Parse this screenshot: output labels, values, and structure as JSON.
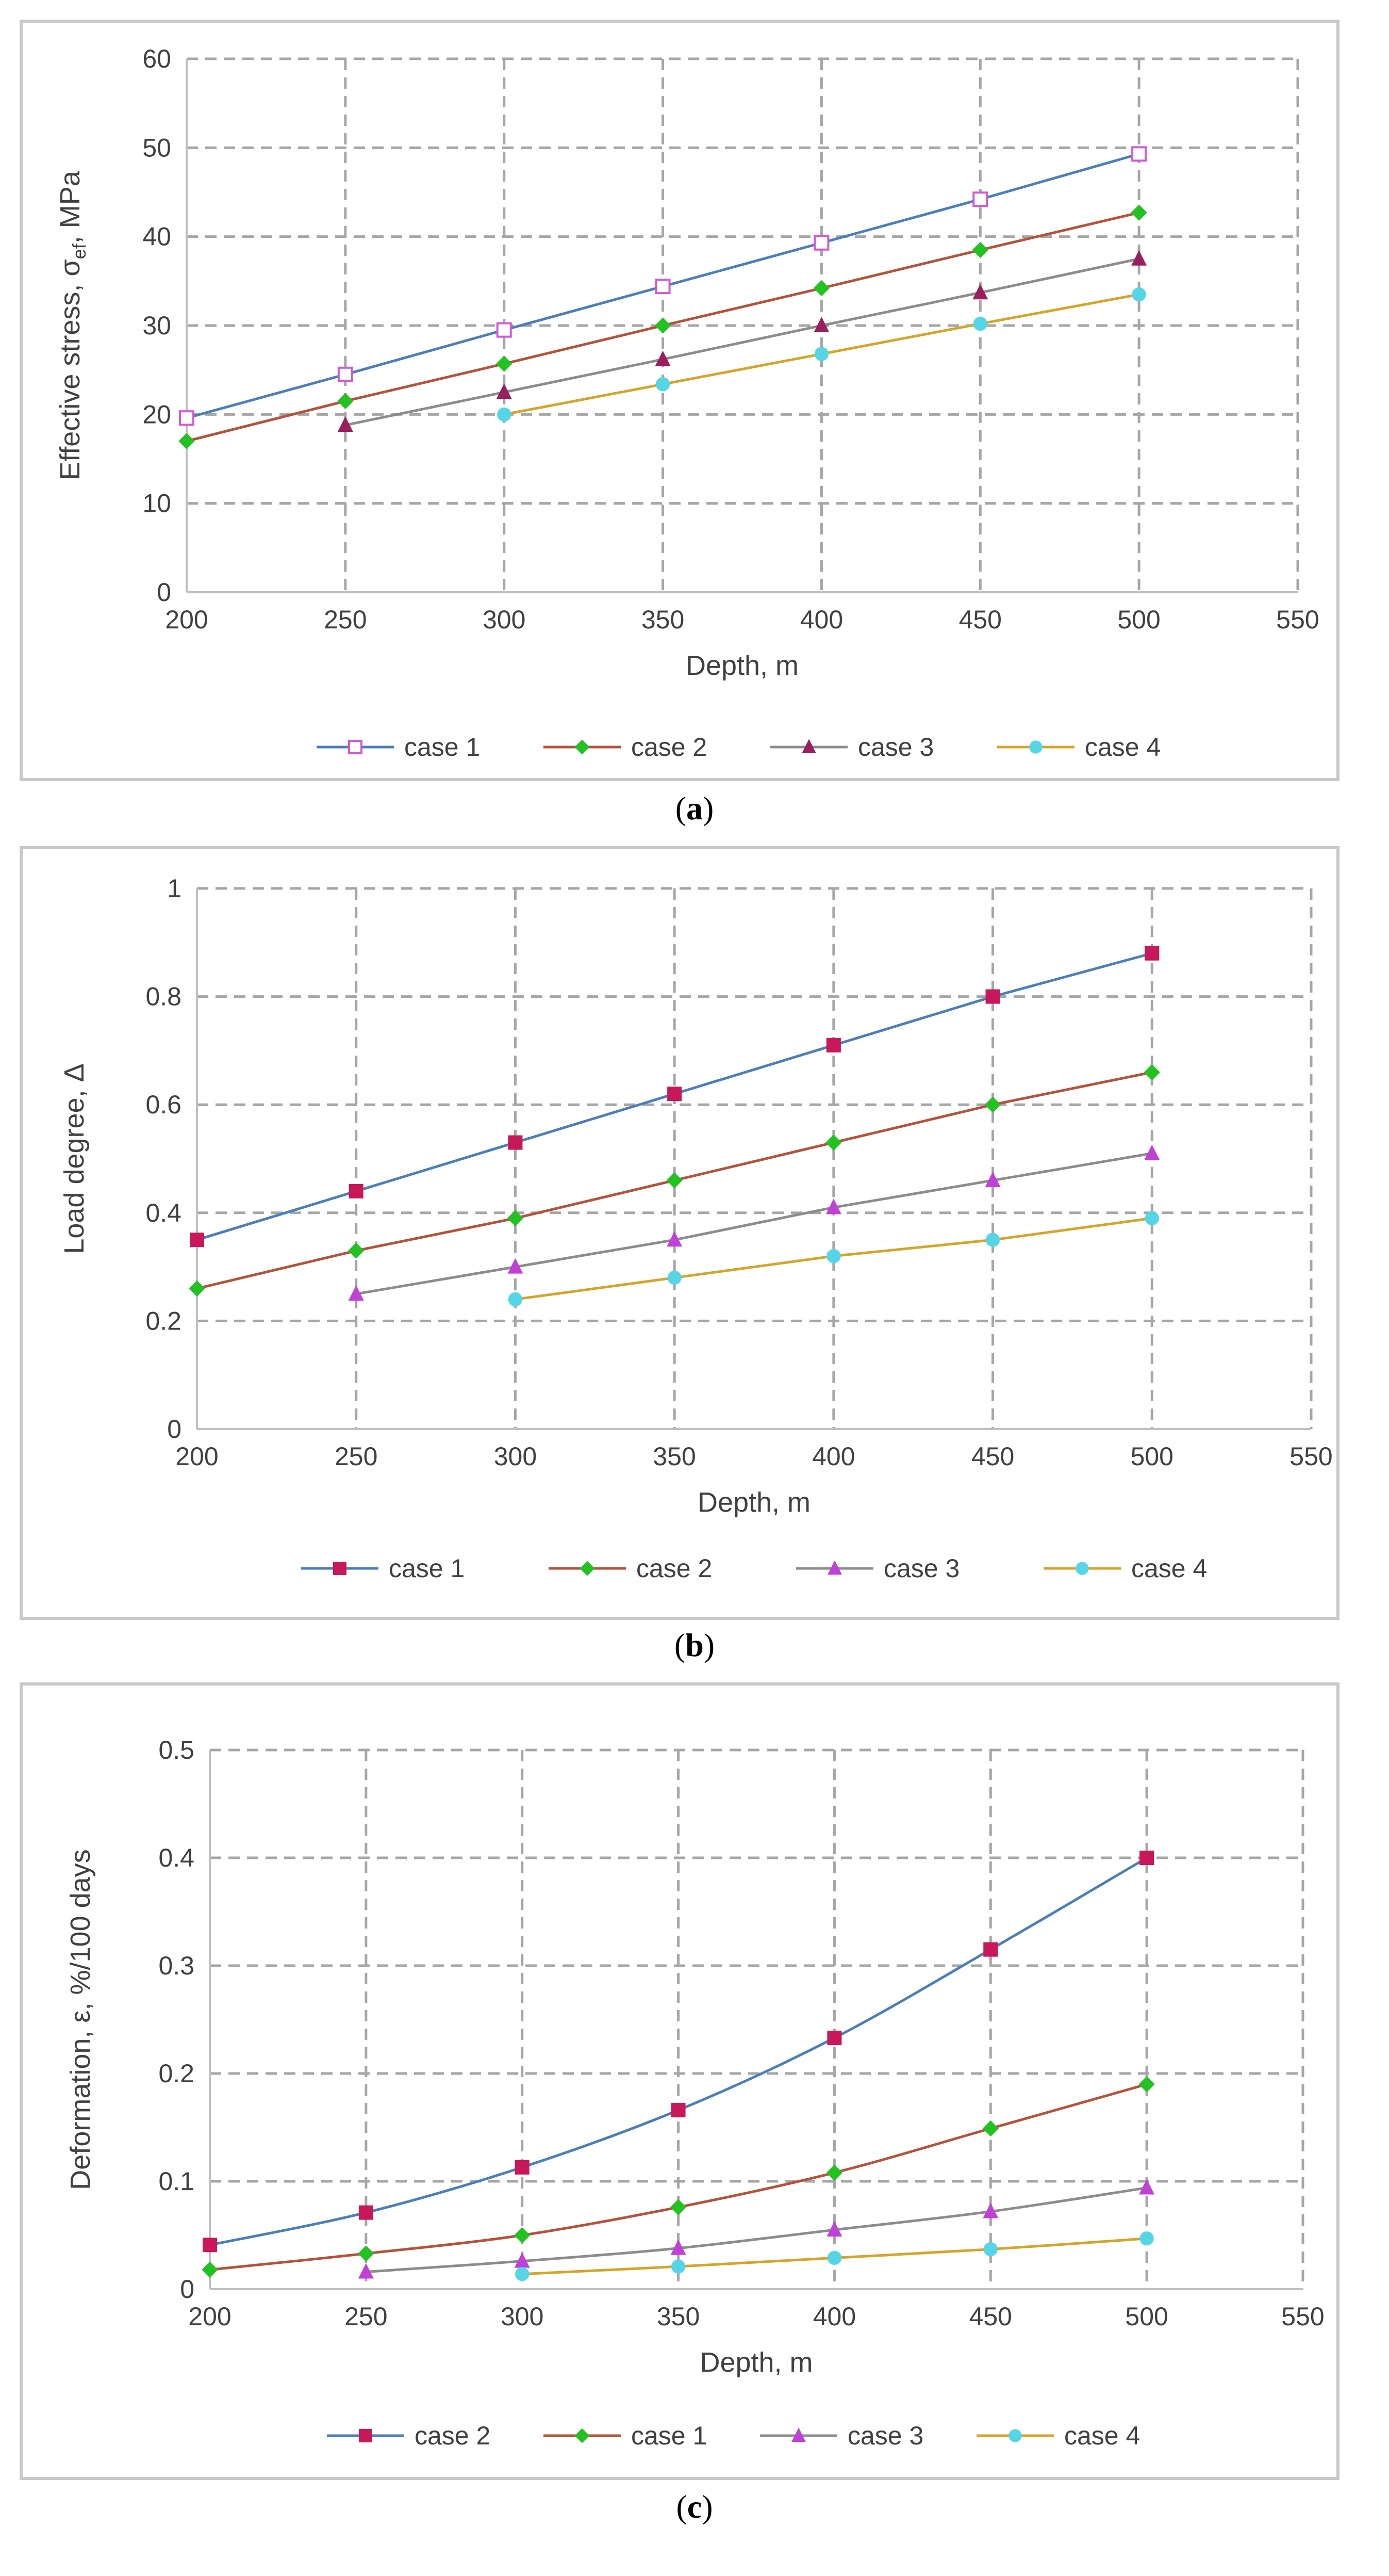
{
  "panels": [
    {
      "label": "a",
      "chart_data": {
        "type": "line",
        "title": "",
        "xlabel": "Depth, m",
        "ylabel": "Effective stress, σ",
        "ylabel_sub": "ef",
        "ylabel_suffix": ", MPa",
        "xlim": [
          200,
          550
        ],
        "ylim": [
          0,
          60
        ],
        "xticks": [
          200,
          250,
          300,
          350,
          400,
          450,
          500,
          550
        ],
        "yticks": [
          0,
          10,
          20,
          30,
          40,
          50,
          60
        ],
        "grid": true,
        "legend": "bottom",
        "series": [
          {
            "name": "case 1",
            "color": "#4a7ebb",
            "marker": "square-open",
            "markerColor": "#d05ad6",
            "x": [
              200,
              250,
              300,
              350,
              400,
              450,
              500
            ],
            "y": [
              19.6,
              24.5,
              29.5,
              34.4,
              39.3,
              44.2,
              49.3
            ]
          },
          {
            "name": "case 2",
            "color": "#b5523b",
            "marker": "diamond",
            "markerColor": "#22c222",
            "x": [
              200,
              250,
              300,
              350,
              400,
              450,
              500
            ],
            "y": [
              17.0,
              21.5,
              25.7,
              30.0,
              34.2,
              38.5,
              42.7
            ]
          },
          {
            "name": "case 3",
            "color": "#8c8c8c",
            "marker": "triangle",
            "markerColor": "#9a1f5e",
            "x": [
              250,
              300,
              350,
              400,
              450,
              500
            ],
            "y": [
              18.8,
              22.5,
              26.2,
              30.0,
              33.7,
              37.5
            ]
          },
          {
            "name": "case 4",
            "color": "#d4a52a",
            "marker": "circle",
            "markerColor": "#55d6e6",
            "x": [
              300,
              350,
              400,
              450,
              500
            ],
            "y": [
              20.0,
              23.4,
              26.8,
              30.2,
              33.5
            ]
          }
        ]
      }
    },
    {
      "label": "b",
      "chart_data": {
        "type": "line",
        "title": "",
        "xlabel": "Depth, m",
        "ylabel": "Load degree, Δ",
        "ylabel_sub": "",
        "ylabel_suffix": "",
        "xlim": [
          200,
          550
        ],
        "ylim": [
          0,
          1
        ],
        "xticks": [
          200,
          250,
          300,
          350,
          400,
          450,
          500,
          550
        ],
        "yticks": [
          0,
          0.2,
          0.4,
          0.6,
          0.8,
          1
        ],
        "grid": true,
        "legend": "bottom",
        "series": [
          {
            "name": "case 1",
            "color": "#4a7ebb",
            "marker": "square",
            "markerColor": "#c8185a",
            "x": [
              200,
              250,
              300,
              350,
              400,
              450,
              500
            ],
            "y": [
              0.35,
              0.44,
              0.53,
              0.62,
              0.71,
              0.8,
              0.88
            ]
          },
          {
            "name": "case 2",
            "color": "#b5523b",
            "marker": "diamond",
            "markerColor": "#22c222",
            "x": [
              200,
              250,
              300,
              350,
              400,
              450,
              500
            ],
            "y": [
              0.26,
              0.33,
              0.39,
              0.46,
              0.53,
              0.6,
              0.66
            ]
          },
          {
            "name": "case 3",
            "color": "#8c8c8c",
            "marker": "triangle",
            "markerColor": "#c040d8",
            "x": [
              250,
              300,
              350,
              400,
              450,
              500
            ],
            "y": [
              0.25,
              0.3,
              0.35,
              0.41,
              0.46,
              0.51
            ]
          },
          {
            "name": "case 4",
            "color": "#d4a52a",
            "marker": "circle",
            "markerColor": "#55d6e6",
            "x": [
              300,
              350,
              400,
              450,
              500
            ],
            "y": [
              0.24,
              0.28,
              0.32,
              0.35,
              0.39
            ]
          }
        ]
      }
    },
    {
      "label": "c",
      "chart_data": {
        "type": "line",
        "title": "",
        "xlabel": "Depth, m",
        "ylabel": "Deformation, ε, %/100 days",
        "ylabel_sub": "",
        "ylabel_suffix": "",
        "xlim": [
          200,
          550
        ],
        "ylim": [
          0,
          0.5
        ],
        "xticks": [
          200,
          250,
          300,
          350,
          400,
          450,
          500,
          550
        ],
        "yticks": [
          0,
          0.1,
          0.2,
          0.3,
          0.4,
          0.5
        ],
        "grid": true,
        "legend": "bottom",
        "series": [
          {
            "name": "case 2",
            "color": "#4a7ebb",
            "marker": "square",
            "markerColor": "#c8185a",
            "x": [
              200,
              250,
              300,
              350,
              400,
              450,
              500
            ],
            "y": [
              0.041,
              0.071,
              0.113,
              0.166,
              0.233,
              0.315,
              0.4
            ]
          },
          {
            "name": "case 1",
            "color": "#b5523b",
            "marker": "diamond",
            "markerColor": "#22c222",
            "x": [
              200,
              250,
              300,
              350,
              400,
              450,
              500
            ],
            "y": [
              0.018,
              0.033,
              0.05,
              0.076,
              0.108,
              0.149,
              0.19
            ]
          },
          {
            "name": "case 3",
            "color": "#8c8c8c",
            "marker": "triangle",
            "markerColor": "#c040d8",
            "x": [
              250,
              300,
              350,
              400,
              450,
              500
            ],
            "y": [
              0.016,
              0.026,
              0.038,
              0.055,
              0.072,
              0.094
            ]
          },
          {
            "name": "case 4",
            "color": "#d4a52a",
            "marker": "circle",
            "markerColor": "#55d6e6",
            "x": [
              300,
              350,
              400,
              450,
              500
            ],
            "y": [
              0.014,
              0.021,
              0.029,
              0.037,
              0.047
            ]
          }
        ]
      }
    }
  ]
}
